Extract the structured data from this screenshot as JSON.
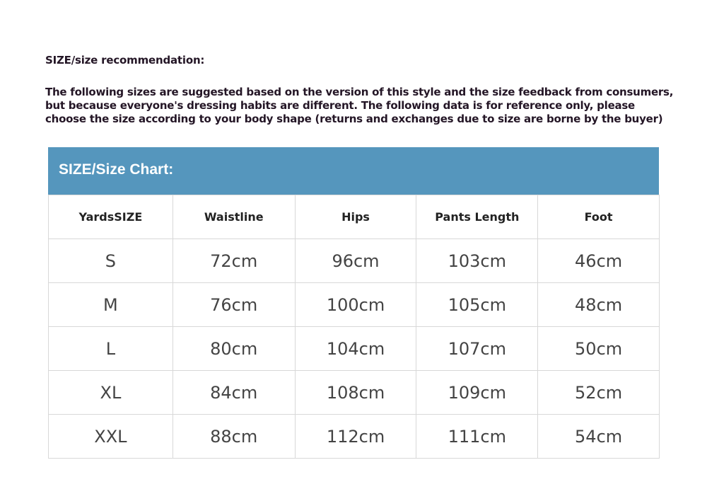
{
  "title": "SIZE/size recommendation:",
  "description": [
    "The following sizes are suggested based on the version of this style and the size feedback from consumers,",
    "but because everyone's dressing habits are different. The following data is for reference only, please",
    "choose the size according to your body shape (returns and exchanges due to size are borne by the buyer)"
  ],
  "chart_title": "SIZE/Size Chart:",
  "colors": {
    "header_band": "#5596bd",
    "text": "#241626"
  },
  "chart_data": {
    "type": "table",
    "columns": [
      "YardsSIZE",
      "Waistline",
      "Hips",
      "Pants Length",
      "Foot"
    ],
    "rows": [
      [
        "S",
        "72cm",
        "96cm",
        "103cm",
        "46cm"
      ],
      [
        "M",
        "76cm",
        "100cm",
        "105cm",
        "48cm"
      ],
      [
        "L",
        "80cm",
        "104cm",
        "107cm",
        "50cm"
      ],
      [
        "XL",
        "84cm",
        "108cm",
        "109cm",
        "52cm"
      ],
      [
        "XXL",
        "88cm",
        "112cm",
        "111cm",
        "54cm"
      ]
    ]
  }
}
